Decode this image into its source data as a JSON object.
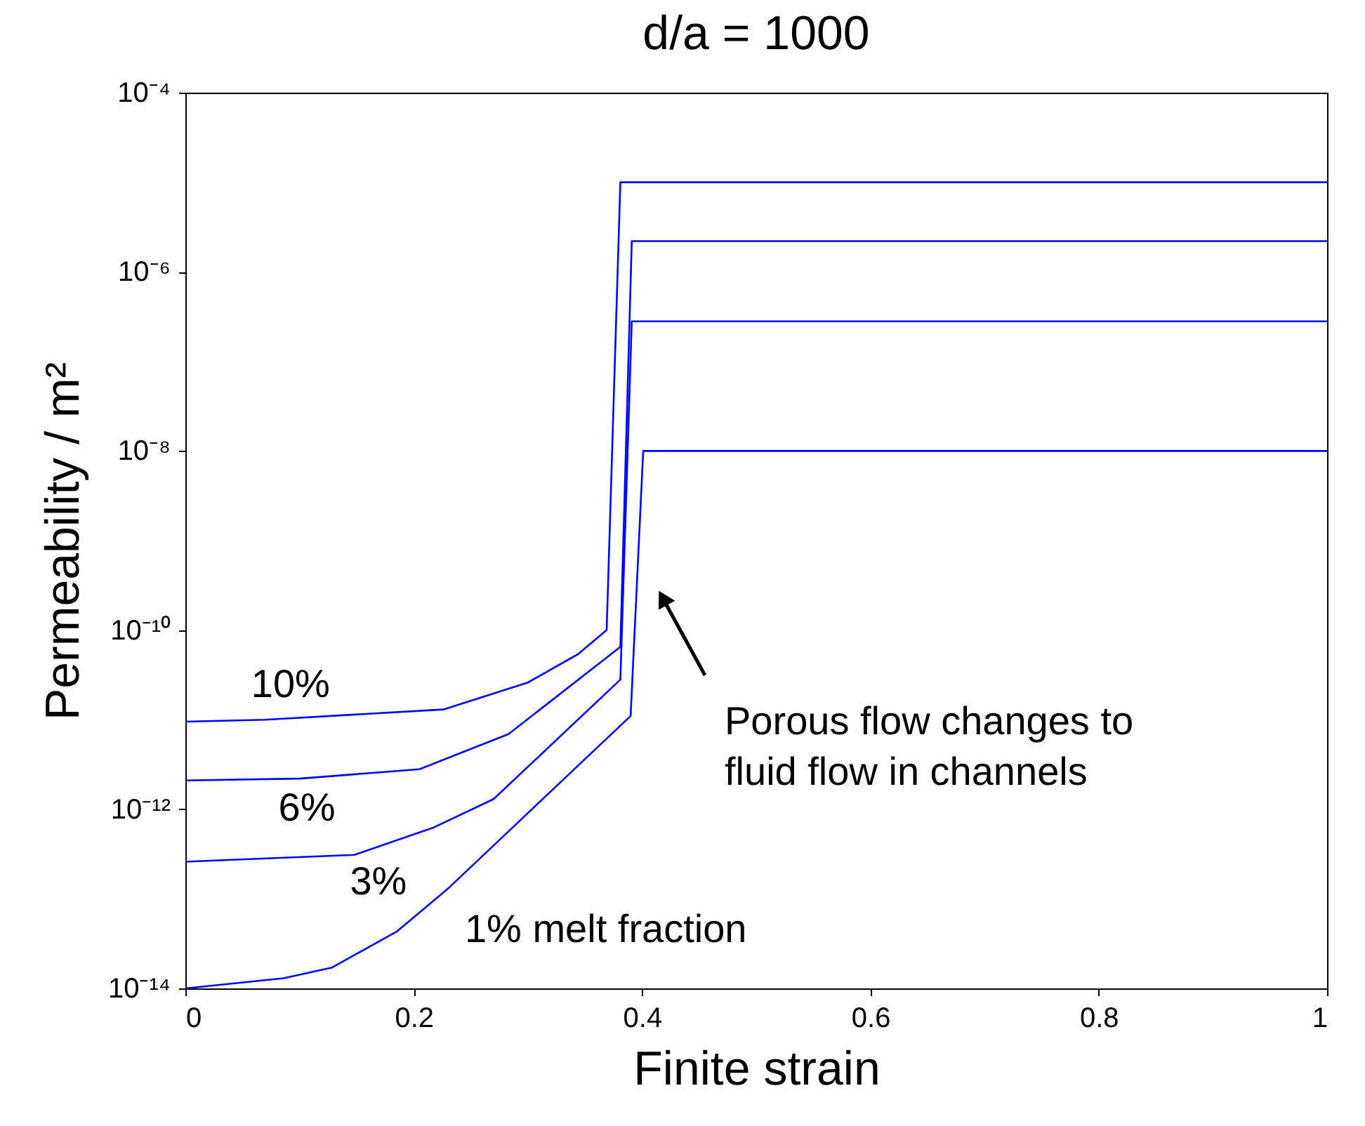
{
  "chart_data": {
    "type": "line",
    "title": "d/a = 1000",
    "xlabel": "Finite strain",
    "ylabel": "Permeability / m²",
    "log": "y",
    "grid": false,
    "legend": false,
    "line_style": "solid",
    "xlim": [
      0,
      1
    ],
    "xticks": [
      0,
      0.2,
      0.4,
      0.6,
      0.8,
      1
    ],
    "ylim": [
      1e-14,
      0.0001
    ],
    "yticks": [
      {
        "value": 1e-14,
        "label": "10⁻¹⁴"
      },
      {
        "value": 1e-12,
        "label": "10⁻¹²"
      },
      {
        "value": 1e-10,
        "label": "10⁻¹⁰"
      },
      {
        "value": 1e-08,
        "label": "10⁻⁸"
      },
      {
        "value": 1e-06,
        "label": "10⁻⁶"
      },
      {
        "value": 0.0001,
        "label": "10⁻⁴"
      }
    ],
    "series": [
      {
        "name": "10%",
        "color": "#0000ff",
        "x": [
          0,
          0.07,
          0.226,
          0.3,
          0.344,
          0.369,
          0.381,
          1
        ],
        "values": [
          9.5e-12,
          1e-11,
          1.3e-11,
          2.6e-11,
          5.4e-11,
          1e-10,
          1e-05,
          1e-05
        ]
      },
      {
        "name": "6%",
        "color": "#0000ff",
        "x": [
          0,
          0.1,
          0.205,
          0.283,
          0.381,
          0.391,
          1
        ],
        "values": [
          2.1e-12,
          2.2e-12,
          2.8e-12,
          6.9e-12,
          6.5e-11,
          2.2e-06,
          2.2e-06
        ]
      },
      {
        "name": "3%",
        "color": "#0000ff",
        "x": [
          0,
          0.148,
          0.218,
          0.27,
          0.381,
          0.391,
          1
        ],
        "values": [
          2.6e-13,
          3.1e-13,
          6.3e-13,
          1.3e-12,
          2.8e-11,
          2.8e-07,
          2.8e-07
        ]
      },
      {
        "name": "1% melt fraction",
        "color": "#0000ff",
        "x": [
          0,
          0.086,
          0.128,
          0.185,
          0.23,
          0.295,
          0.39,
          0.401,
          1
        ],
        "values": [
          1e-14,
          1.3e-14,
          1.7e-14,
          4.3e-14,
          1.3e-13,
          7.9e-13,
          1.1e-11,
          1e-08,
          1e-08
        ]
      }
    ],
    "annotations": [
      "Porous flow changes to fluid flow in channels"
    ]
  }
}
